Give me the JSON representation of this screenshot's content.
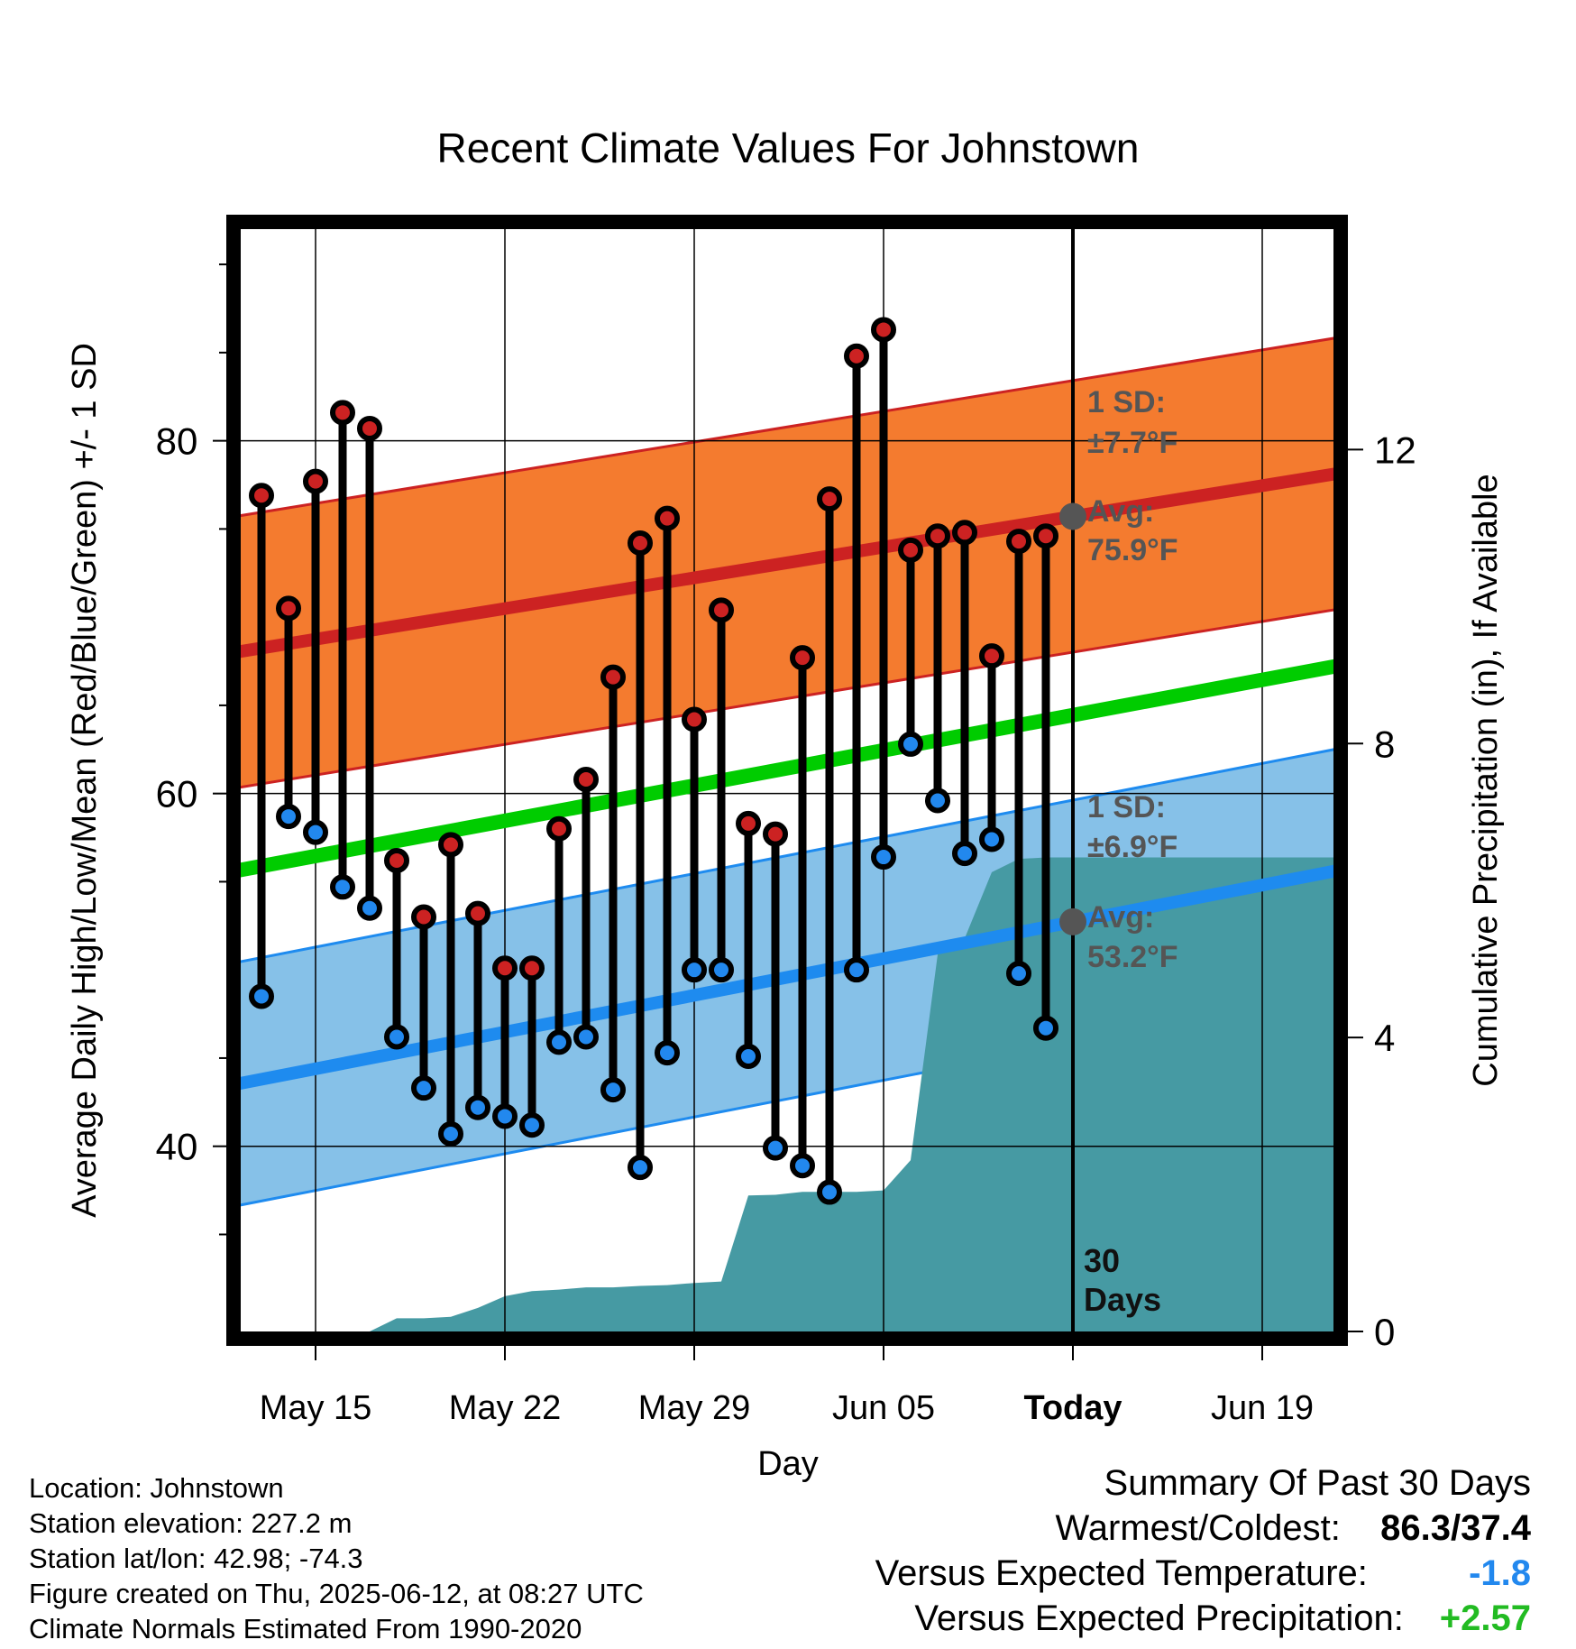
{
  "chart_data": {
    "type": "line",
    "title": "Recent Climate Values For Johnstown",
    "xlabel": "Day",
    "ylabel": "Average Daily High/Low/Mean (Red/Blue/Green) +/- 1 SD",
    "y2label": "Cumulative Precipitation (in), If Available",
    "ylim": [
      29.5,
      92
    ],
    "y2lim": [
      0,
      15
    ],
    "yticks": [
      "40",
      "60",
      "80"
    ],
    "y2ticks": [
      "0",
      "4",
      "8",
      "12"
    ],
    "xticks": [
      "May 15",
      "May 22",
      "May 29",
      "Jun 05",
      "Today",
      "Jun 19"
    ],
    "today_label": "30 Days",
    "series": [
      {
        "name": "High",
        "color": "#cc2222",
        "dates": [
          "2025-05-13",
          "2025-05-14",
          "2025-05-15",
          "2025-05-16",
          "2025-05-17",
          "2025-05-18",
          "2025-05-19",
          "2025-05-20",
          "2025-05-21",
          "2025-05-22",
          "2025-05-23",
          "2025-05-24",
          "2025-05-25",
          "2025-05-26",
          "2025-05-27",
          "2025-05-28",
          "2025-05-29",
          "2025-05-30",
          "2025-05-31",
          "2025-06-01",
          "2025-06-02",
          "2025-06-03",
          "2025-06-04",
          "2025-06-05",
          "2025-06-06",
          "2025-06-07",
          "2025-06-08",
          "2025-06-09",
          "2025-06-10",
          "2025-06-11"
        ],
        "values": [
          76.9,
          70.5,
          77.7,
          81.6,
          80.7,
          56.2,
          53.0,
          57.1,
          53.2,
          50.1,
          50.1,
          58.0,
          60.8,
          66.6,
          74.2,
          75.6,
          64.2,
          70.4,
          58.3,
          57.7,
          67.7,
          76.7,
          84.8,
          86.3,
          73.8,
          74.6,
          74.8,
          67.8,
          74.3,
          74.6
        ]
      },
      {
        "name": "Low",
        "color": "#2288ee",
        "dates": [
          "2025-05-13",
          "2025-05-14",
          "2025-05-15",
          "2025-05-16",
          "2025-05-17",
          "2025-05-18",
          "2025-05-19",
          "2025-05-20",
          "2025-05-21",
          "2025-05-22",
          "2025-05-23",
          "2025-05-24",
          "2025-05-25",
          "2025-05-26",
          "2025-05-27",
          "2025-05-28",
          "2025-05-29",
          "2025-05-30",
          "2025-05-31",
          "2025-06-01",
          "2025-06-02",
          "2025-06-03",
          "2025-06-04",
          "2025-06-05",
          "2025-06-06",
          "2025-06-07",
          "2025-06-08",
          "2025-06-09",
          "2025-06-10",
          "2025-06-11"
        ],
        "values": [
          48.5,
          58.7,
          57.8,
          54.7,
          53.5,
          46.2,
          43.3,
          40.7,
          42.2,
          41.7,
          41.2,
          45.9,
          46.2,
          43.2,
          38.8,
          45.3,
          50.0,
          50.0,
          45.1,
          39.9,
          38.9,
          37.4,
          50.0,
          56.4,
          62.8,
          59.6,
          56.6,
          57.4,
          49.8,
          46.7
        ]
      }
    ],
    "normals": {
      "dates": [
        "2025-05-12",
        "2025-06-22"
      ],
      "high_mean": [
        68.0,
        78.2
      ],
      "high_sd": 7.7,
      "mean": [
        55.6,
        67.3
      ],
      "low_mean": [
        43.5,
        55.7
      ],
      "low_sd": 6.9
    },
    "precip_cumulative": {
      "dates": [
        "2025-05-12",
        "2025-05-13",
        "2025-05-14",
        "2025-05-15",
        "2025-05-16",
        "2025-05-17",
        "2025-05-18",
        "2025-05-19",
        "2025-05-20",
        "2025-05-21",
        "2025-05-22",
        "2025-05-23",
        "2025-05-24",
        "2025-05-25",
        "2025-05-26",
        "2025-05-27",
        "2025-05-28",
        "2025-05-29",
        "2025-05-30",
        "2025-05-31",
        "2025-06-01",
        "2025-06-02",
        "2025-06-03",
        "2025-06-04",
        "2025-06-05",
        "2025-06-06",
        "2025-06-07",
        "2025-06-08",
        "2025-06-09",
        "2025-06-10",
        "2025-06-11",
        "2025-06-12",
        "2025-06-22"
      ],
      "values": [
        0,
        0,
        0,
        0,
        0,
        0,
        0.18,
        0.18,
        0.2,
        0.32,
        0.48,
        0.55,
        0.57,
        0.6,
        0.6,
        0.62,
        0.63,
        0.66,
        0.68,
        1.85,
        1.86,
        1.9,
        1.9,
        1.9,
        1.92,
        2.33,
        5.13,
        5.35,
        6.25,
        6.43,
        6.45,
        6.45,
        6.45
      ]
    },
    "annotations": [
      {
        "label": "1 SD:",
        "value": "±7.7°F"
      },
      {
        "label": "Avg:",
        "value": "75.9°F"
      },
      {
        "label": "1 SD:",
        "value": "±6.9°F"
      },
      {
        "label": "Avg:",
        "value": "53.2°F"
      }
    ],
    "colors": {
      "high_band": "#f47b2f",
      "high_line": "#cc2222",
      "low_band": "#86c1e8",
      "low_line": "#1e8bef",
      "mean_line": "#00cc00",
      "precip": "#469aa3",
      "annotation": "#555555"
    }
  },
  "info": {
    "location": "Location: Johnstown",
    "elevation": "Station elevation: 227.2 m",
    "latlon": "Station lat/lon: 42.98; -74.3",
    "created": "Figure created on Thu, 2025-06-12, at 08:27 UTC",
    "normals": "Climate Normals Estimated From 1990-2020"
  },
  "summary": {
    "title": "Summary Of Past 30 Days",
    "warm_cold_label": "Warmest/Coldest:",
    "warm_cold_value": "86.3/37.4",
    "temp_label": "Versus Expected Temperature:",
    "temp_value": "-1.8",
    "temp_color": "#2288ee",
    "precip_label": "Versus Expected Precipitation:",
    "precip_value": "+2.57",
    "precip_color": "#22bb22"
  }
}
